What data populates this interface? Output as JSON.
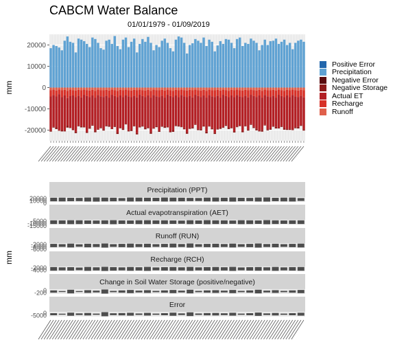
{
  "chart_data": [
    {
      "type": "bar",
      "title": "CABCM Water Balance",
      "subtitle": "01/01/1979 - 01/09/2019",
      "ylabel": "mm",
      "ylim": [
        -25000,
        25000
      ],
      "yticks": [
        20000,
        10000,
        0,
        -10000,
        -20000
      ],
      "ytick_labels": [
        "20000",
        "10000",
        "0",
        "-10000",
        "-20000"
      ],
      "grid": true,
      "legend_position": "right",
      "legend": [
        {
          "label": "Positive Error",
          "color": "#2166ac"
        },
        {
          "label": "Precipitation",
          "color": "#5fa2d3"
        },
        {
          "label": "Negative Error",
          "color": "#5a0c0f"
        },
        {
          "label": "Negative Storage",
          "color": "#8c1a1a"
        },
        {
          "label": "Actual ET",
          "color": "#b31f24"
        },
        {
          "label": "Recharge",
          "color": "#d73027"
        },
        {
          "label": "Runoff",
          "color": "#e0604b"
        }
      ],
      "precipitation": [
        18500,
        20000,
        19500,
        18800,
        17500,
        22000,
        24000,
        21500,
        21000,
        16500,
        23000,
        22500,
        21800,
        20500,
        19000,
        23500,
        22800,
        21000,
        18500,
        17800,
        22000,
        22500,
        20500,
        24200,
        19500,
        18000,
        22500,
        23500,
        19000,
        21500,
        23000,
        16500,
        20500,
        22800,
        21500,
        23800,
        21000,
        17500,
        20000,
        19000,
        22000,
        23000,
        21000,
        18500,
        17000,
        22500,
        24000,
        23500,
        21000,
        16000,
        20000,
        20800,
        22800,
        22000,
        21000,
        23500,
        19500,
        22500,
        21500,
        17000,
        19800,
        21800,
        20500,
        22800,
        22500,
        21000,
        18500,
        22800,
        23500,
        19500,
        21000,
        20500,
        23000,
        22000,
        21000,
        17500,
        20000,
        22500,
        20000,
        21800,
        22000,
        23000,
        20500,
        21500,
        22500,
        20000,
        21000,
        18000,
        21000,
        22000,
        22500,
        21500
      ],
      "actual_et": [
        -16000,
        -15000,
        -14500,
        -17000,
        -15500,
        -16500,
        -13000,
        -14800,
        -15800,
        -16200,
        -14000,
        -13500,
        -15000,
        -16800,
        -14200,
        -13800,
        -15500,
        -16000,
        -14500,
        -15200,
        -14000,
        -13000,
        -15800,
        -14000,
        -16500,
        -15000,
        -14800,
        -13500,
        -16000,
        -15200,
        -14000,
        -16800,
        -15000,
        -13800,
        -14500,
        -15000,
        -16200,
        -15500,
        -14000,
        -15800,
        -14200,
        -13500,
        -15000,
        -16500,
        -15500,
        -14000,
        -13200,
        -14800,
        -15000,
        -16500,
        -15200,
        -14000,
        -13800,
        -15500,
        -15000,
        -14200,
        -16000,
        -14500,
        -15000,
        -16800,
        -15500,
        -14000,
        -15200,
        -13500,
        -14200,
        -15000,
        -16000,
        -14800,
        -13500,
        -15800,
        -14000,
        -15000,
        -13800,
        -14500,
        -15000,
        -16500,
        -15200,
        -14000,
        -15500,
        -14800,
        -14200,
        -13800,
        -15500,
        -14000,
        -14500,
        -15800,
        -14800,
        -16200,
        -14500,
        -14000,
        -13800,
        -15000
      ],
      "recharge": [
        -3000,
        -2500,
        -2800,
        -2200,
        -3200,
        -2600,
        -3400,
        -2900,
        -2500,
        -3100,
        -2700,
        -3300,
        -2400,
        -2800,
        -3000,
        -2600,
        -3200,
        -2500,
        -2900,
        -3100,
        -2700,
        -3300,
        -2400,
        -2800,
        -3000,
        -2600,
        -3200,
        -2500,
        -2900,
        -3100,
        -2700,
        -3300,
        -2400,
        -2800,
        -3000,
        -2600,
        -3200,
        -2500,
        -2900,
        -3100,
        -2700,
        -3300,
        -2400,
        -2800,
        -3000,
        -2600,
        -3200,
        -2500,
        -2900,
        -3100,
        -2700,
        -3300,
        -2400,
        -2800,
        -3000,
        -2600,
        -3200,
        -2500,
        -2900,
        -3100,
        -2700,
        -3300,
        -2400,
        -2800,
        -3000,
        -2600,
        -3200,
        -2500,
        -2900,
        -3100,
        -2700,
        -3300,
        -2400,
        -2800,
        -3000,
        -2600,
        -3200,
        -2500,
        -2900,
        -3100,
        -2700,
        -3300,
        -2400,
        -2800,
        -3000,
        -2600,
        -3200,
        -2500,
        -2900,
        -3100,
        -2700,
        -3300
      ],
      "runoff": [
        -1200,
        -1000,
        -1400,
        -900,
        -1300,
        -1100,
        -1500,
        -1000,
        -1200,
        -1400,
        -1100,
        -1300,
        -1000,
        -1200,
        -1400,
        -1100,
        -1500,
        -1000,
        -1200,
        -1300,
        -1100,
        -1400,
        -1000,
        -1200,
        -1500,
        -1100,
        -1300,
        -1000,
        -1200,
        -1400,
        -1100,
        -1300,
        -1000,
        -1200,
        -1400,
        -1100,
        -1500,
        -1000,
        -1200,
        -1300,
        -1100,
        -1400,
        -1000,
        -1200,
        -1500,
        -1100,
        -1300,
        -1000,
        -1200,
        -1400,
        -1100,
        -1300,
        -1000,
        -1200,
        -1400,
        -1100,
        -1500,
        -1000,
        -1200,
        -1300,
        -1100,
        -1400,
        -1000,
        -1200,
        -1500,
        -1100,
        -1300,
        -1000,
        -1200,
        -1400,
        -1100,
        -1300,
        -1000,
        -1200,
        -1400,
        -1100,
        -1500,
        -1000,
        -1200,
        -1300,
        -1100,
        -1400,
        -1000,
        -1200,
        -1500,
        -1100,
        -1300,
        -1000,
        -1200,
        -1400,
        -1100,
        -1300
      ],
      "negative_storage": [
        -500,
        -300,
        -800,
        -200,
        -600,
        -400,
        -900,
        -300,
        -500,
        -700,
        -400,
        -600,
        -300,
        -500,
        -700,
        -400,
        -800,
        -300,
        -500,
        -600,
        -400,
        -700,
        -300,
        -500,
        -800,
        -400,
        -600,
        -300,
        -500,
        -700,
        -400,
        -600,
        -300,
        -500,
        -700,
        -400,
        -800,
        -300,
        -500,
        -600,
        -400,
        -700,
        -300,
        -500,
        -800,
        -400,
        -600,
        -300,
        -500,
        -700,
        -400,
        -600,
        -300,
        -500,
        -700,
        -400,
        -800,
        -300,
        -500,
        -600,
        -400,
        -700,
        -300,
        -500,
        -800,
        -400,
        -600,
        -300,
        -500,
        -700,
        -400,
        -600,
        -300,
        -500,
        -700,
        -400,
        -800,
        -300,
        -500,
        -600,
        -400,
        -700,
        -300,
        -500,
        -800,
        -400,
        -600,
        -300,
        -500,
        -700,
        -400,
        -600
      ]
    },
    {
      "type": "bar",
      "ylabel": "mm",
      "facets": [
        {
          "strip": "Precipitation (PPT)",
          "ytick_labels": [
            "20000",
            "10000",
            "0"
          ],
          "values": [
            20000,
            21000,
            19000,
            18000,
            22000,
            23000,
            21000,
            20000,
            16000,
            22000,
            21000,
            20000,
            19000,
            22000,
            21000,
            20000,
            18000,
            17000,
            21000,
            22000,
            20000,
            23000,
            19000,
            18000,
            22000,
            23000,
            19000,
            21000,
            22000,
            16000
          ]
        },
        {
          "strip": "Actual evapotranspiration (AET)",
          "ytick_labels": [
            "-5000",
            "-10000",
            "-15000"
          ],
          "values": [
            -15000,
            -14500,
            -16000,
            -15500,
            -14000,
            -13500,
            -15000,
            -16500,
            -14200,
            -13800,
            -15500,
            -16000,
            -14500,
            -15200,
            -14000,
            -13000,
            -15800,
            -14000,
            -16500,
            -15000,
            -14800,
            -13500,
            -16000,
            -15200,
            -14000,
            -16800,
            -15000,
            -13800,
            -14500,
            -15000
          ]
        },
        {
          "strip": "Runoff (RUN)",
          "ytick_labels": [
            "-2000",
            "-4000",
            "-6000"
          ],
          "values": [
            -1200,
            -1000,
            -1400,
            -900,
            -1300,
            -1100,
            -1500,
            -1000,
            -1200,
            -1400,
            -1100,
            -1300,
            -1000,
            -1200,
            -1400,
            -1100,
            -1500,
            -1000,
            -1200,
            -1300,
            -1100,
            -1400,
            -1000,
            -1200,
            -1500,
            -1100,
            -1300,
            -1000,
            -1200,
            -1400
          ]
        },
        {
          "strip": "Recharge (RCH)",
          "ytick_labels": [
            "-2000",
            "-4000"
          ],
          "values": [
            -3000,
            -2500,
            -2800,
            -2200,
            -3200,
            -2600,
            -3400,
            -2900,
            -2500,
            -3100,
            -2700,
            -3300,
            -2400,
            -2800,
            -3000,
            -2600,
            -3200,
            -2500,
            -2900,
            -3100,
            -2700,
            -3300,
            -2400,
            -2800,
            -3000,
            -2600,
            -3200,
            -2500,
            -2900,
            -3100
          ]
        },
        {
          "strip": "Change in Soil Water Storage (positive/negative)",
          "ytick_labels": [
            "0",
            "-200"
          ],
          "values": [
            -50,
            -20,
            -80,
            -10,
            -60,
            -40,
            -90,
            -30,
            -50,
            -70,
            -40,
            -60,
            -30,
            -50,
            -70,
            -40,
            -80,
            -30,
            -50,
            -60,
            -40,
            -70,
            -30,
            -50,
            -80,
            -40,
            -60,
            -30,
            -50,
            -70
          ]
        },
        {
          "strip": "Error",
          "ytick_labels": [
            "0",
            "-5000"
          ],
          "values": [
            -100,
            -50,
            -150,
            -80,
            -120,
            -60,
            -200,
            -90,
            -110,
            -140,
            -70,
            -130,
            -60,
            -100,
            -150,
            -80,
            -180,
            -70,
            -110,
            -120,
            -90,
            -140,
            -60,
            -100,
            -160,
            -80,
            -120,
            -60,
            -100,
            -140
          ]
        }
      ]
    }
  ]
}
